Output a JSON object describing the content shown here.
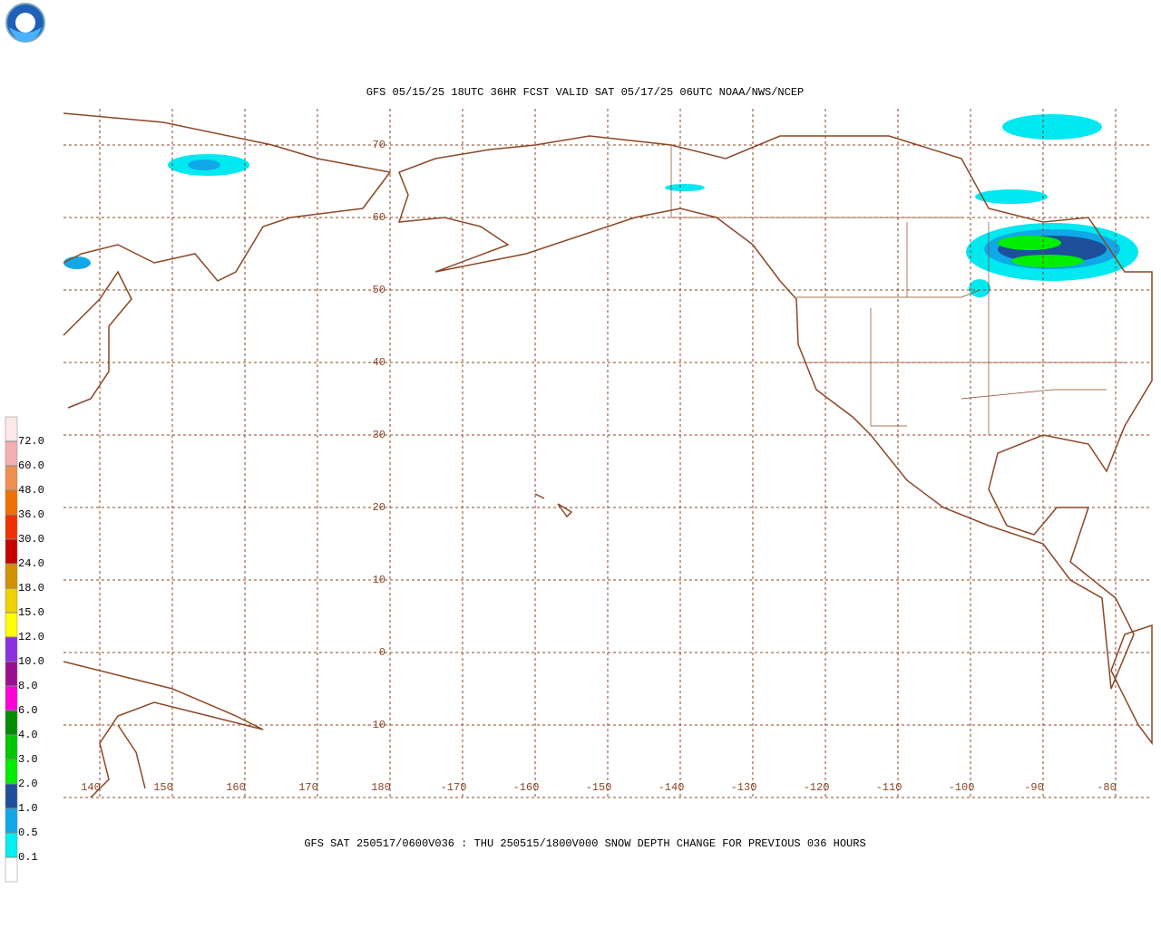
{
  "header": {
    "title": "GFS 05/15/25 18UTC 36HR FCST VALID SAT 05/17/25 06UTC NOAA/NWS/NCEP"
  },
  "map": {
    "latitudes": [
      70,
      60,
      50,
      40,
      30,
      20,
      10,
      0,
      -10
    ],
    "longitudes": [
      140,
      150,
      160,
      170,
      180,
      -170,
      -160,
      -150,
      -140,
      -130,
      -120,
      -110,
      -100,
      -90,
      -80
    ],
    "grid_color": "#8b4726"
  },
  "caption": "GFS SAT 250517/0600V036 : THU 250515/1800V000 SNOW DEPTH CHANGE FOR PREVIOUS 036 HOURS",
  "colorbar": {
    "levels": [
      {
        "value": 0.1,
        "label": "0.1"
      },
      {
        "value": 0.5,
        "label": "0.5"
      },
      {
        "value": 1,
        "label": "1.0"
      },
      {
        "value": 2,
        "label": "2.0"
      },
      {
        "value": 3,
        "label": "3.0"
      },
      {
        "value": 4,
        "label": "4.0"
      },
      {
        "value": 6,
        "label": "6.0"
      },
      {
        "value": 8,
        "label": "8.0"
      },
      {
        "value": 10,
        "label": "10.0"
      },
      {
        "value": 12,
        "label": "12.0"
      },
      {
        "value": 15,
        "label": "15.0"
      },
      {
        "value": 18,
        "label": "18.0"
      },
      {
        "value": 24,
        "label": "24.0"
      },
      {
        "value": 30,
        "label": "30.0"
      },
      {
        "value": 36,
        "label": "36.0"
      },
      {
        "value": 48,
        "label": "48.0"
      },
      {
        "value": 60,
        "label": "60.0"
      },
      {
        "value": 72,
        "label": "72.0"
      }
    ],
    "colors": [
      "#ffffff",
      "#00f0f0",
      "#10a8e8",
      "#1d4f9a",
      "#00ee00",
      "#00c800",
      "#008c00",
      "#ff00d8",
      "#9a1090",
      "#8a30e0",
      "#ffff00",
      "#f0d000",
      "#d09000",
      "#c80000",
      "#f03000",
      "#f07000",
      "#f09050",
      "#f4b0b0",
      "#fde8e8"
    ]
  }
}
